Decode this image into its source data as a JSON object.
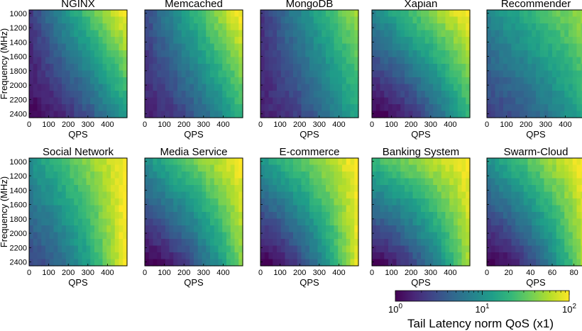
{
  "figure": {
    "ylabel": "Frequency (MHz)",
    "xlabel": "QPS"
  },
  "colorbar": {
    "label": "Tail Latency norm QoS (x1)",
    "tick_labels": [
      {
        "base": "10",
        "exp": "0"
      },
      {
        "base": "10",
        "exp": "1"
      },
      {
        "base": "10",
        "exp": "2"
      }
    ],
    "colors": [
      "#440154",
      "#482878",
      "#3e4989",
      "#31688e",
      "#26828e",
      "#1f9e89",
      "#35b779",
      "#6ece58",
      "#b5de2b",
      "#fde725"
    ]
  },
  "chart_data": [
    {
      "type": "heatmap",
      "title": "NGINX",
      "x_ticks": [
        "0",
        "100",
        "200",
        "300",
        "400"
      ],
      "y_ticks": [
        "1000",
        "1200",
        "1400",
        "1600",
        "1800",
        "2000",
        "2200",
        "2400"
      ],
      "xlim": [
        0,
        500
      ],
      "ylim": [
        1000,
        2500
      ],
      "cscale": "log",
      "crange": [
        1,
        100
      ],
      "corner_values_log10": {
        "low_qps_low_freq": 0.35,
        "low_qps_high_freq": 0.05,
        "high_qps_low_freq": 2.0,
        "high_qps_high_freq": 1.1
      }
    },
    {
      "type": "heatmap",
      "title": "Memcached",
      "x_ticks": [
        "0",
        "100",
        "200",
        "300",
        "400"
      ],
      "y_ticks": [
        "1000",
        "1200",
        "1400",
        "1600",
        "1800",
        "2000",
        "2200",
        "2400"
      ],
      "xlim": [
        0,
        500
      ],
      "ylim": [
        1000,
        2500
      ],
      "cscale": "log",
      "crange": [
        1,
        100
      ],
      "corner_values_log10": {
        "low_qps_low_freq": 0.45,
        "low_qps_high_freq": 0.2,
        "high_qps_low_freq": 2.0,
        "high_qps_high_freq": 1.3
      }
    },
    {
      "type": "heatmap",
      "title": "MongoDB",
      "x_ticks": [
        "0",
        "100",
        "200",
        "300",
        "400"
      ],
      "y_ticks": [
        "1000",
        "1200",
        "1400",
        "1600",
        "1800",
        "2000",
        "2200",
        "2400"
      ],
      "xlim": [
        0,
        500
      ],
      "ylim": [
        1000,
        2500
      ],
      "cscale": "log",
      "crange": [
        1,
        100
      ],
      "corner_values_log10": {
        "low_qps_low_freq": 0.3,
        "low_qps_high_freq": 0.2,
        "high_qps_low_freq": 1.7,
        "high_qps_high_freq": 1.2
      }
    },
    {
      "type": "heatmap",
      "title": "Xapian",
      "x_ticks": [
        "0",
        "100",
        "200",
        "300",
        "400"
      ],
      "y_ticks": [
        "1000",
        "1200",
        "1400",
        "1600",
        "1800",
        "2000",
        "2200",
        "2400"
      ],
      "xlim": [
        0,
        500
      ],
      "ylim": [
        1000,
        2500
      ],
      "cscale": "log",
      "crange": [
        1,
        100
      ],
      "corner_values_log10": {
        "low_qps_low_freq": 0.9,
        "low_qps_high_freq": 0.0,
        "high_qps_low_freq": 2.0,
        "high_qps_high_freq": 1.3
      }
    },
    {
      "type": "heatmap",
      "title": "Recommender",
      "x_ticks": [
        "0",
        "100",
        "200",
        "300",
        "400"
      ],
      "y_ticks": [
        "1000",
        "1200",
        "1400",
        "1600",
        "1800",
        "2000",
        "2200",
        "2400"
      ],
      "xlim": [
        0,
        500
      ],
      "ylim": [
        1000,
        2500
      ],
      "cscale": "log",
      "crange": [
        1,
        100
      ],
      "corner_values_log10": {
        "low_qps_low_freq": 0.9,
        "low_qps_high_freq": 0.4,
        "high_qps_low_freq": 1.7,
        "high_qps_high_freq": 1.2
      }
    },
    {
      "type": "heatmap",
      "title": "Social Network",
      "x_ticks": [
        "0",
        "100",
        "200",
        "300",
        "400"
      ],
      "y_ticks": [
        "1000",
        "1200",
        "1400",
        "1600",
        "1800",
        "2000",
        "2200",
        "2400"
      ],
      "xlim": [
        0,
        500
      ],
      "ylim": [
        1000,
        2500
      ],
      "cscale": "log",
      "crange": [
        1,
        100
      ],
      "corner_values_log10": {
        "low_qps_low_freq": 1.0,
        "low_qps_high_freq": 0.45,
        "high_qps_low_freq": 2.0,
        "high_qps_high_freq": 2.0
      }
    },
    {
      "type": "heatmap",
      "title": "Media Service",
      "x_ticks": [
        "0",
        "100",
        "200",
        "300",
        "400"
      ],
      "y_ticks": [
        "1000",
        "1200",
        "1400",
        "1600",
        "1800",
        "2000",
        "2200",
        "2400"
      ],
      "xlim": [
        0,
        500
      ],
      "ylim": [
        1000,
        2500
      ],
      "cscale": "log",
      "crange": [
        1,
        100
      ],
      "corner_values_log10": {
        "low_qps_low_freq": 1.0,
        "low_qps_high_freq": 0.0,
        "high_qps_low_freq": 2.0,
        "high_qps_high_freq": 1.6
      }
    },
    {
      "type": "heatmap",
      "title": "E-commerce",
      "x_ticks": [
        "0",
        "100",
        "200",
        "300",
        "400"
      ],
      "y_ticks": [
        "1000",
        "1200",
        "1400",
        "1600",
        "1800",
        "2000",
        "2200",
        "2400"
      ],
      "xlim": [
        0,
        500
      ],
      "ylim": [
        1000,
        2500
      ],
      "cscale": "log",
      "crange": [
        1,
        100
      ],
      "corner_values_log10": {
        "low_qps_low_freq": 1.05,
        "low_qps_high_freq": 0.0,
        "high_qps_low_freq": 2.0,
        "high_qps_high_freq": 1.9
      }
    },
    {
      "type": "heatmap",
      "title": "Banking System",
      "x_ticks": [
        "0",
        "100",
        "200",
        "300",
        "400"
      ],
      "y_ticks": [
        "1000",
        "1200",
        "1400",
        "1600",
        "1800",
        "2000",
        "2200",
        "2400"
      ],
      "xlim": [
        0,
        500
      ],
      "ylim": [
        1000,
        2500
      ],
      "cscale": "log",
      "crange": [
        1,
        100
      ],
      "corner_values_log10": {
        "low_qps_low_freq": 1.3,
        "low_qps_high_freq": 0.05,
        "high_qps_low_freq": 2.0,
        "high_qps_high_freq": 1.7
      }
    },
    {
      "type": "heatmap",
      "title": "Swarm-Cloud",
      "x_ticks": [
        "0",
        "20",
        "40",
        "60",
        "80"
      ],
      "y_ticks": [
        "1000",
        "1200",
        "1400",
        "1600",
        "1800",
        "2000",
        "2200",
        "2400"
      ],
      "xlim": [
        0,
        90
      ],
      "ylim": [
        1000,
        2500
      ],
      "cscale": "log",
      "crange": [
        1,
        100
      ],
      "corner_values_log10": {
        "low_qps_low_freq": 1.0,
        "low_qps_high_freq": 0.0,
        "high_qps_low_freq": 2.0,
        "high_qps_high_freq": 1.7
      }
    }
  ]
}
